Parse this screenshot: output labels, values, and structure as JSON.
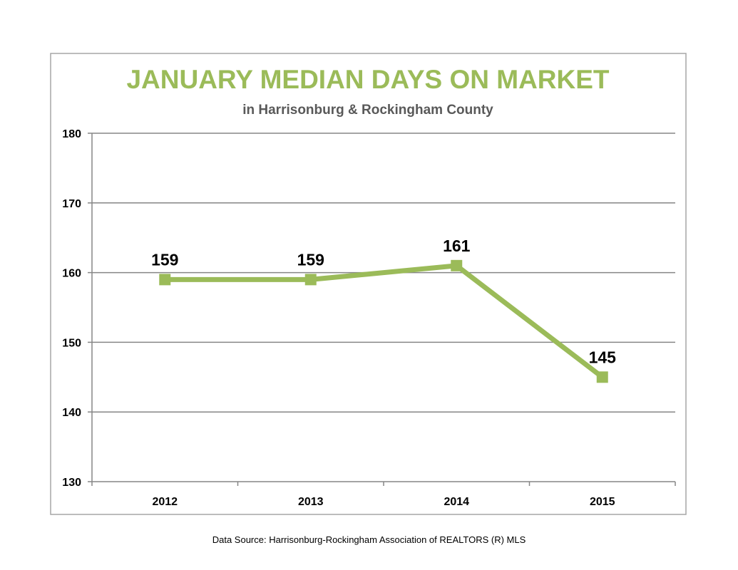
{
  "chart_data": {
    "type": "line",
    "title": "JANUARY MEDIAN DAYS ON MARKET",
    "subtitle": "in Harrisonburg  & Rockingham County",
    "categories": [
      "2012",
      "2013",
      "2014",
      "2015"
    ],
    "series": [
      {
        "values": [
          159,
          159,
          161,
          145
        ]
      }
    ],
    "data_labels": [
      "159",
      "159",
      "161",
      "145"
    ],
    "ylim": [
      130,
      180
    ],
    "y_ticks": [
      "130",
      "140",
      "150",
      "160",
      "170",
      "180"
    ],
    "grid": true,
    "legend": "none",
    "colors": {
      "line": "#9bbb59",
      "title": "#9bbb59",
      "grid": "#868686",
      "frame": "#a6a6a6"
    }
  },
  "footer": {
    "source": "Data Source: Harrisonburg-Rockingham Association of REALTORS (R) MLS"
  }
}
